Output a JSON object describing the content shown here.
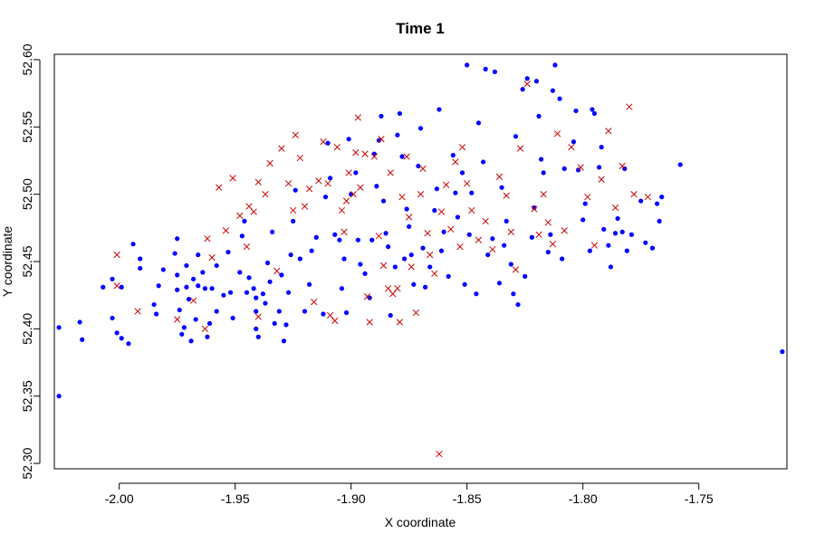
{
  "chart_data": {
    "type": "scatter",
    "title": "Time 1",
    "xlabel": "X coordinate",
    "ylabel": "Y coordinate",
    "xlim": [
      -2.028,
      -1.712
    ],
    "ylim": [
      52.296,
      52.604
    ],
    "x_ticks": [
      -2.0,
      -1.95,
      -1.9,
      -1.85,
      -1.8,
      -1.75
    ],
    "x_tick_labels": [
      "-2.00",
      "-1.95",
      "-1.90",
      "-1.85",
      "-1.80",
      "-1.75"
    ],
    "y_ticks": [
      52.3,
      52.35,
      52.4,
      52.45,
      52.5,
      52.55,
      52.6
    ],
    "y_tick_labels": [
      "52.30",
      "52.35",
      "52.40",
      "52.45",
      "52.50",
      "52.55",
      "52.60"
    ],
    "grid": false,
    "legend": "none",
    "series": [
      {
        "marker": "filled-circle",
        "color": "#0000ff",
        "points": [
          [
            -2.026,
            52.35
          ],
          [
            -2.026,
            52.401
          ],
          [
            -2.016,
            52.392
          ],
          [
            -2.017,
            52.405
          ],
          [
            -2.007,
            52.431
          ],
          [
            -2.003,
            52.437
          ],
          [
            -2.003,
            52.408
          ],
          [
            -2.001,
            52.397
          ],
          [
            -1.999,
            52.393
          ],
          [
            -1.999,
            52.431
          ],
          [
            -1.996,
            52.389
          ],
          [
            -1.994,
            52.463
          ],
          [
            -1.991,
            52.452
          ],
          [
            -1.991,
            52.445
          ],
          [
            -1.985,
            52.418
          ],
          [
            -1.984,
            52.411
          ],
          [
            -1.983,
            52.432
          ],
          [
            -1.981,
            52.444
          ],
          [
            -1.976,
            52.456
          ],
          [
            -1.975,
            52.467
          ],
          [
            -1.975,
            52.44
          ],
          [
            -1.975,
            52.429
          ],
          [
            -1.974,
            52.414
          ],
          [
            -1.973,
            52.396
          ],
          [
            -1.972,
            52.401
          ],
          [
            -1.971,
            52.431
          ],
          [
            -1.971,
            52.447
          ],
          [
            -1.97,
            52.422
          ],
          [
            -1.969,
            52.391
          ],
          [
            -1.968,
            52.437
          ],
          [
            -1.967,
            52.407
          ],
          [
            -1.966,
            52.455
          ],
          [
            -1.966,
            52.432
          ],
          [
            -1.964,
            52.442
          ],
          [
            -1.963,
            52.43
          ],
          [
            -1.961,
            52.404
          ],
          [
            -1.962,
            52.394
          ],
          [
            -1.96,
            52.43
          ],
          [
            -1.958,
            52.447
          ],
          [
            -1.958,
            52.413
          ],
          [
            -1.955,
            52.425
          ],
          [
            -1.953,
            52.457
          ],
          [
            -1.952,
            52.427
          ],
          [
            -1.951,
            52.408
          ],
          [
            -1.948,
            52.442
          ],
          [
            -1.947,
            52.469
          ],
          [
            -1.946,
            52.48
          ],
          [
            -1.945,
            52.427
          ],
          [
            -1.944,
            52.438
          ],
          [
            -1.942,
            52.43
          ],
          [
            -1.941,
            52.423
          ],
          [
            -1.941,
            52.413
          ],
          [
            -1.941,
            52.4
          ],
          [
            -1.94,
            52.394
          ],
          [
            -1.938,
            52.426
          ],
          [
            -1.937,
            52.419
          ],
          [
            -1.936,
            52.449
          ],
          [
            -1.935,
            52.435
          ],
          [
            -1.934,
            52.472
          ],
          [
            -1.933,
            52.404
          ],
          [
            -1.931,
            52.413
          ],
          [
            -1.93,
            52.44
          ],
          [
            -1.929,
            52.391
          ],
          [
            -1.928,
            52.403
          ],
          [
            -1.927,
            52.427
          ],
          [
            -1.926,
            52.455
          ],
          [
            -1.925,
            52.48
          ],
          [
            -1.924,
            52.503
          ],
          [
            -1.922,
            52.452
          ],
          [
            -1.92,
            52.413
          ],
          [
            -1.918,
            52.433
          ],
          [
            -1.917,
            52.458
          ],
          [
            -1.915,
            52.468
          ],
          [
            -1.912,
            52.411
          ],
          [
            -1.911,
            52.498
          ],
          [
            -1.91,
            52.538
          ],
          [
            -1.909,
            52.512
          ],
          [
            -1.907,
            52.47
          ],
          [
            -1.905,
            52.466
          ],
          [
            -1.904,
            52.43
          ],
          [
            -1.903,
            52.452
          ],
          [
            -1.902,
            52.412
          ],
          [
            -1.901,
            52.541
          ],
          [
            -1.9,
            52.5
          ],
          [
            -1.898,
            52.516
          ],
          [
            -1.897,
            52.466
          ],
          [
            -1.896,
            52.448
          ],
          [
            -1.894,
            52.441
          ],
          [
            -1.892,
            52.423
          ],
          [
            -1.891,
            52.466
          ],
          [
            -1.89,
            52.53
          ],
          [
            -1.889,
            52.506
          ],
          [
            -1.888,
            52.54
          ],
          [
            -1.887,
            52.558
          ],
          [
            -1.886,
            52.495
          ],
          [
            -1.885,
            52.471
          ],
          [
            -1.884,
            52.461
          ],
          [
            -1.883,
            52.41
          ],
          [
            -1.881,
            52.446
          ],
          [
            -1.88,
            52.544
          ],
          [
            -1.879,
            52.56
          ],
          [
            -1.878,
            52.528
          ],
          [
            -1.877,
            52.452
          ],
          [
            -1.876,
            52.489
          ],
          [
            -1.875,
            52.476
          ],
          [
            -1.874,
            52.455
          ],
          [
            -1.873,
            52.433
          ],
          [
            -1.871,
            52.521
          ],
          [
            -1.87,
            52.549
          ],
          [
            -1.869,
            52.46
          ],
          [
            -1.868,
            52.431
          ],
          [
            -1.866,
            52.446
          ],
          [
            -1.864,
            52.488
          ],
          [
            -1.863,
            52.504
          ],
          [
            -1.862,
            52.563
          ],
          [
            -1.861,
            52.458
          ],
          [
            -1.86,
            52.472
          ],
          [
            -1.858,
            52.439
          ],
          [
            -1.856,
            52.529
          ],
          [
            -1.855,
            52.501
          ],
          [
            -1.854,
            52.483
          ],
          [
            -1.852,
            52.516
          ],
          [
            -1.851,
            52.433
          ],
          [
            -1.85,
            52.596
          ],
          [
            -1.849,
            52.47
          ],
          [
            -1.848,
            52.501
          ],
          [
            -1.846,
            52.426
          ],
          [
            -1.845,
            52.553
          ],
          [
            -1.843,
            52.524
          ],
          [
            -1.842,
            52.593
          ],
          [
            -1.841,
            52.455
          ],
          [
            -1.839,
            52.467
          ],
          [
            -1.838,
            52.591
          ],
          [
            -1.836,
            52.434
          ],
          [
            -1.835,
            52.505
          ],
          [
            -1.834,
            52.462
          ],
          [
            -1.833,
            52.48
          ],
          [
            -1.831,
            52.448
          ],
          [
            -1.83,
            52.426
          ],
          [
            -1.829,
            52.543
          ],
          [
            -1.828,
            52.418
          ],
          [
            -1.826,
            52.578
          ],
          [
            -1.825,
            52.439
          ],
          [
            -1.824,
            52.586
          ],
          [
            -1.822,
            52.468
          ],
          [
            -1.821,
            52.49
          ],
          [
            -1.82,
            52.584
          ],
          [
            -1.819,
            52.558
          ],
          [
            -1.818,
            52.526
          ],
          [
            -1.817,
            52.516
          ],
          [
            -1.815,
            52.457
          ],
          [
            -1.814,
            52.47
          ],
          [
            -1.813,
            52.577
          ],
          [
            -1.812,
            52.596
          ],
          [
            -1.81,
            52.571
          ],
          [
            -1.809,
            52.452
          ],
          [
            -1.808,
            52.519
          ],
          [
            -1.804,
            52.539
          ],
          [
            -1.803,
            52.562
          ],
          [
            -1.802,
            52.518
          ],
          [
            -1.8,
            52.481
          ],
          [
            -1.799,
            52.493
          ],
          [
            -1.797,
            52.458
          ],
          [
            -1.796,
            52.563
          ],
          [
            -1.795,
            52.56
          ],
          [
            -1.793,
            52.52
          ],
          [
            -1.792,
            52.535
          ],
          [
            -1.791,
            52.474
          ],
          [
            -1.789,
            52.462
          ],
          [
            -1.788,
            52.446
          ],
          [
            -1.786,
            52.471
          ],
          [
            -1.785,
            52.482
          ],
          [
            -1.783,
            52.472
          ],
          [
            -1.782,
            52.519
          ],
          [
            -1.781,
            52.458
          ],
          [
            -1.779,
            52.47
          ],
          [
            -1.775,
            52.495
          ],
          [
            -1.773,
            52.464
          ],
          [
            -1.77,
            52.46
          ],
          [
            -1.768,
            52.493
          ],
          [
            -1.767,
            52.48
          ],
          [
            -1.766,
            52.498
          ],
          [
            -1.758,
            52.522
          ],
          [
            -1.714,
            52.383
          ]
        ]
      },
      {
        "marker": "x-cross",
        "color": "#cc0000",
        "points": [
          [
            -2.001,
            52.455
          ],
          [
            -2.001,
            52.432
          ],
          [
            -1.992,
            52.413
          ],
          [
            -1.975,
            52.407
          ],
          [
            -1.968,
            52.421
          ],
          [
            -1.963,
            52.4
          ],
          [
            -1.962,
            52.467
          ],
          [
            -1.96,
            52.453
          ],
          [
            -1.957,
            52.505
          ],
          [
            -1.954,
            52.473
          ],
          [
            -1.951,
            52.512
          ],
          [
            -1.948,
            52.484
          ],
          [
            -1.945,
            52.461
          ],
          [
            -1.944,
            52.491
          ],
          [
            -1.942,
            52.487
          ],
          [
            -1.94,
            52.409
          ],
          [
            -1.94,
            52.509
          ],
          [
            -1.937,
            52.5
          ],
          [
            -1.935,
            52.523
          ],
          [
            -1.932,
            52.443
          ],
          [
            -1.93,
            52.534
          ],
          [
            -1.927,
            52.508
          ],
          [
            -1.925,
            52.488
          ],
          [
            -1.924,
            52.544
          ],
          [
            -1.922,
            52.527
          ],
          [
            -1.92,
            52.491
          ],
          [
            -1.918,
            52.504
          ],
          [
            -1.916,
            52.42
          ],
          [
            -1.914,
            52.51
          ],
          [
            -1.912,
            52.539
          ],
          [
            -1.91,
            52.508
          ],
          [
            -1.909,
            52.41
          ],
          [
            -1.907,
            52.406
          ],
          [
            -1.906,
            52.535
          ],
          [
            -1.904,
            52.488
          ],
          [
            -1.903,
            52.472
          ],
          [
            -1.902,
            52.495
          ],
          [
            -1.901,
            52.516
          ],
          [
            -1.899,
            52.5
          ],
          [
            -1.898,
            52.531
          ],
          [
            -1.897,
            52.557
          ],
          [
            -1.896,
            52.505
          ],
          [
            -1.894,
            52.53
          ],
          [
            -1.893,
            52.424
          ],
          [
            -1.892,
            52.405
          ],
          [
            -1.89,
            52.528
          ],
          [
            -1.888,
            52.469
          ],
          [
            -1.887,
            52.541
          ],
          [
            -1.886,
            52.447
          ],
          [
            -1.884,
            52.43
          ],
          [
            -1.883,
            52.516
          ],
          [
            -1.882,
            52.426
          ],
          [
            -1.88,
            52.43
          ],
          [
            -1.879,
            52.405
          ],
          [
            -1.878,
            52.498
          ],
          [
            -1.876,
            52.528
          ],
          [
            -1.875,
            52.483
          ],
          [
            -1.874,
            52.446
          ],
          [
            -1.872,
            52.412
          ],
          [
            -1.87,
            52.5
          ],
          [
            -1.869,
            52.519
          ],
          [
            -1.867,
            52.471
          ],
          [
            -1.866,
            52.455
          ],
          [
            -1.864,
            52.441
          ],
          [
            -1.862,
            52.307
          ],
          [
            -1.861,
            52.487
          ],
          [
            -1.859,
            52.507
          ],
          [
            -1.857,
            52.474
          ],
          [
            -1.855,
            52.524
          ],
          [
            -1.853,
            52.461
          ],
          [
            -1.852,
            52.535
          ],
          [
            -1.85,
            52.508
          ],
          [
            -1.848,
            52.488
          ],
          [
            -1.845,
            52.466
          ],
          [
            -1.842,
            52.48
          ],
          [
            -1.839,
            52.459
          ],
          [
            -1.836,
            52.513
          ],
          [
            -1.833,
            52.499
          ],
          [
            -1.831,
            52.472
          ],
          [
            -1.829,
            52.444
          ],
          [
            -1.827,
            52.534
          ],
          [
            -1.824,
            52.582
          ],
          [
            -1.821,
            52.489
          ],
          [
            -1.819,
            52.47
          ],
          [
            -1.817,
            52.5
          ],
          [
            -1.815,
            52.479
          ],
          [
            -1.813,
            52.463
          ],
          [
            -1.811,
            52.545
          ],
          [
            -1.808,
            52.473
          ],
          [
            -1.805,
            52.535
          ],
          [
            -1.801,
            52.52
          ],
          [
            -1.798,
            52.498
          ],
          [
            -1.795,
            52.462
          ],
          [
            -1.792,
            52.511
          ],
          [
            -1.789,
            52.547
          ],
          [
            -1.786,
            52.49
          ],
          [
            -1.783,
            52.521
          ],
          [
            -1.78,
            52.565
          ],
          [
            -1.778,
            52.5
          ],
          [
            -1.772,
            52.498
          ]
        ]
      }
    ]
  }
}
